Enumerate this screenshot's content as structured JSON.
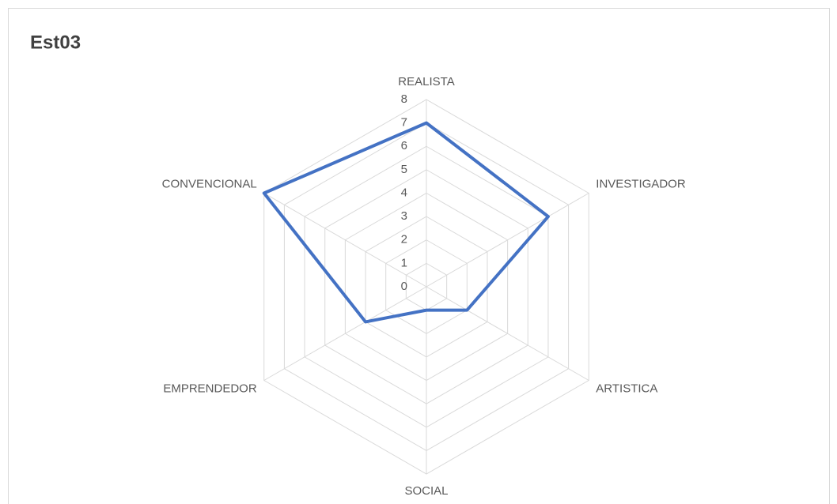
{
  "chart_data": {
    "type": "radar",
    "title": "Est03",
    "categories": [
      "REALISTA",
      "INVESTIGADOR",
      "ARTISTICA",
      "SOCIAL",
      "EMPRENDEDOR",
      "CONVENCIONAL"
    ],
    "series": [
      {
        "name": "Est03",
        "color": "#4472c4",
        "values": [
          7,
          6,
          2,
          1,
          3,
          8
        ]
      }
    ],
    "ylim": [
      0,
      8
    ],
    "yticks": [
      0,
      1,
      2,
      3,
      4,
      5,
      6,
      7,
      8
    ],
    "grid": true
  }
}
